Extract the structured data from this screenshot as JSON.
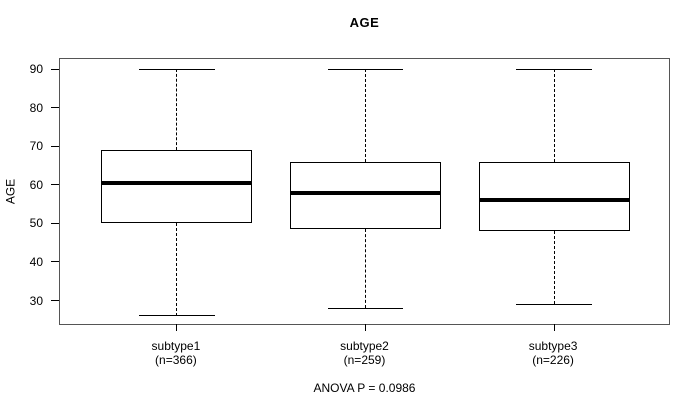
{
  "colors": {
    "line": "#000000",
    "plot_border": "#555555",
    "background": "#ffffff",
    "text": "#000000"
  },
  "chart_data": {
    "type": "boxplot",
    "title": "AGE",
    "ylabel": "AGE",
    "xlabel": "",
    "annotation": "ANOVA P = 0.0986",
    "y_ticks": [
      30,
      40,
      50,
      60,
      70,
      80,
      90
    ],
    "ylim": [
      23.4,
      92.6
    ],
    "grid": false,
    "groups": [
      {
        "label": "subtype1",
        "sublabel": "(n=366)",
        "whisker_low": 26,
        "q1": 50,
        "median": 60.5,
        "q3": 69,
        "whisker_high": 90
      },
      {
        "label": "subtype2",
        "sublabel": "(n=259)",
        "whisker_low": 28,
        "q1": 48.5,
        "median": 58,
        "q3": 66,
        "whisker_high": 90
      },
      {
        "label": "subtype3",
        "sublabel": "(n=226)",
        "whisker_low": 29,
        "q1": 48,
        "median": 56,
        "q3": 66,
        "whisker_high": 90
      }
    ]
  }
}
